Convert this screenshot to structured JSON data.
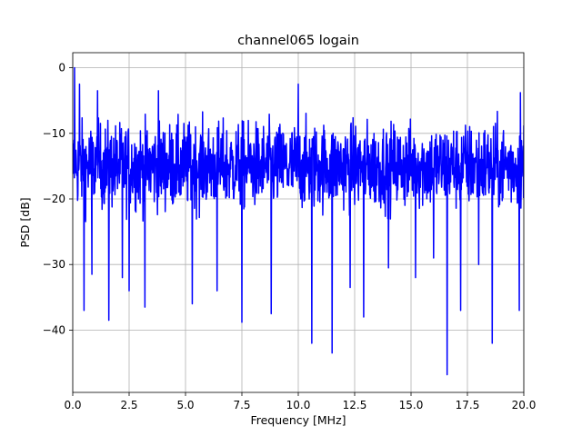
{
  "chart_data": {
    "type": "line",
    "title": "channel065 logain",
    "xlabel": "Frequency [MHz]",
    "ylabel": "PSD [dB]",
    "xlim": [
      0,
      20
    ],
    "ylim": [
      -49.5,
      2.3
    ],
    "grid": true,
    "x_ticks": [
      0,
      2.5,
      5,
      7.5,
      10,
      12.5,
      15,
      17.5,
      20
    ],
    "x_tick_labels": [
      "0.0",
      "2.5",
      "5.0",
      "7.5",
      "10.0",
      "12.5",
      "15.0",
      "17.5",
      "20.0"
    ],
    "y_ticks": [
      0,
      -10,
      -20,
      -30,
      -40
    ],
    "y_tick_labels": [
      "0",
      "−10",
      "−20",
      "−30",
      "−40"
    ],
    "series": [
      {
        "color": "#0000ff",
        "x_start": 0,
        "x_end": 20,
        "baseline_mean": -15,
        "typical_range": [
          -22,
          -8
        ],
        "spikes": [
          {
            "x": 0.08,
            "y": 0.0
          },
          {
            "x": 0.12,
            "y": -16.0
          },
          {
            "x": 0.3,
            "y": -2.5
          },
          {
            "x": 0.5,
            "y": -37.0
          },
          {
            "x": 0.85,
            "y": -31.5
          },
          {
            "x": 1.1,
            "y": -3.5
          },
          {
            "x": 1.6,
            "y": -38.5
          },
          {
            "x": 2.2,
            "y": -32.0
          },
          {
            "x": 2.5,
            "y": -34.0
          },
          {
            "x": 3.2,
            "y": -36.5
          },
          {
            "x": 3.8,
            "y": -3.5
          },
          {
            "x": 5.3,
            "y": -36.0
          },
          {
            "x": 6.4,
            "y": -34.0
          },
          {
            "x": 7.5,
            "y": -38.8
          },
          {
            "x": 8.8,
            "y": -37.5
          },
          {
            "x": 10.0,
            "y": -2.5
          },
          {
            "x": 10.6,
            "y": -42.0
          },
          {
            "x": 11.5,
            "y": -43.5
          },
          {
            "x": 12.3,
            "y": -33.5
          },
          {
            "x": 12.9,
            "y": -38.0
          },
          {
            "x": 14.0,
            "y": -30.5
          },
          {
            "x": 15.2,
            "y": -32.0
          },
          {
            "x": 16.0,
            "y": -29.0
          },
          {
            "x": 16.6,
            "y": -46.8
          },
          {
            "x": 17.2,
            "y": -37.0
          },
          {
            "x": 18.0,
            "y": -30.0
          },
          {
            "x": 18.6,
            "y": -42.0
          },
          {
            "x": 19.8,
            "y": -37.0
          },
          {
            "x": 19.85,
            "y": -3.8
          }
        ]
      }
    ]
  }
}
